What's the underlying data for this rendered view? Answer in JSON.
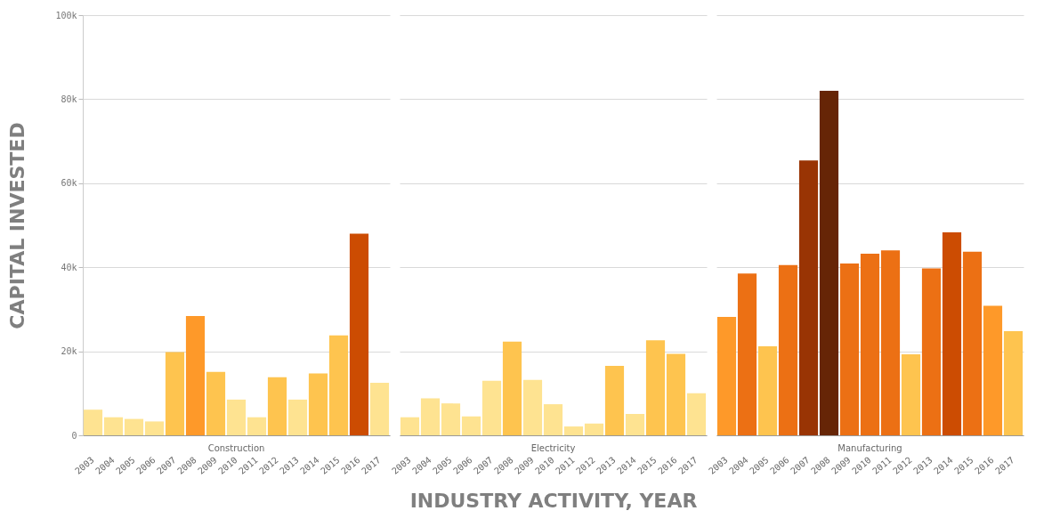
{
  "chart_data": [
    {
      "type": "bar",
      "ylabel": "CAPITAL INVESTED",
      "annotations": [
        "Construction"
      ],
      "categories": [
        "2003",
        "2004",
        "2005",
        "2006",
        "2007",
        "2008",
        "2009",
        "2010",
        "2011",
        "2012",
        "2013",
        "2014",
        "2015",
        "2016",
        "2017"
      ],
      "values": [
        6100,
        4300,
        3900,
        3300,
        19800,
        28400,
        15100,
        8500,
        4300,
        13800,
        8500,
        14700,
        23800,
        48000,
        12500
      ],
      "colors": [
        "#fee391",
        "#fee391",
        "#fee391",
        "#fee391",
        "#fec44f",
        "#fe9929",
        "#fec44f",
        "#fee391",
        "#fee391",
        "#fec44f",
        "#fee391",
        "#fec44f",
        "#fec44f",
        "#cc4c02",
        "#fee391"
      ],
      "ylim": [
        0,
        100000
      ],
      "yticks": [
        {
          "value": 0,
          "label": "0"
        },
        {
          "value": 20000,
          "label": "20k"
        },
        {
          "value": 40000,
          "label": "40k"
        },
        {
          "value": 60000,
          "label": "60k"
        },
        {
          "value": 80000,
          "label": "80k"
        },
        {
          "value": 100000,
          "label": "100k"
        }
      ],
      "grid": "y"
    },
    {
      "type": "bar",
      "xlabel": "INDUSTRY ACTIVITY, YEAR",
      "annotations": [
        "Electricity"
      ],
      "categories": [
        "2003",
        "2004",
        "2005",
        "2006",
        "2007",
        "2008",
        "2009",
        "2010",
        "2011",
        "2012",
        "2013",
        "2014",
        "2015",
        "2016",
        "2017"
      ],
      "values": [
        4300,
        8800,
        7600,
        4500,
        13000,
        22300,
        13200,
        7400,
        2100,
        2800,
        16500,
        5100,
        22600,
        19400,
        10000
      ],
      "colors": [
        "#fee391",
        "#fee391",
        "#fee391",
        "#fee391",
        "#fee391",
        "#fec44f",
        "#fee391",
        "#fee391",
        "#fee391",
        "#fee391",
        "#fec44f",
        "#fee391",
        "#fec44f",
        "#fec44f",
        "#fee391"
      ],
      "ylim": [
        0,
        100000
      ],
      "yticks": [
        0,
        20000,
        40000,
        60000,
        80000,
        100000
      ],
      "grid": "y",
      "tick_labels": "x"
    },
    {
      "type": "bar",
      "annotations": [
        "Manufacturing"
      ],
      "categories": [
        "2003",
        "2004",
        "2005",
        "2006",
        "2007",
        "2008",
        "2009",
        "2010",
        "2011",
        "2012",
        "2013",
        "2014",
        "2015",
        "2016",
        "2017"
      ],
      "values": [
        28200,
        38500,
        21200,
        40500,
        65400,
        82000,
        40900,
        43200,
        44000,
        19300,
        39700,
        48300,
        43700,
        30800,
        24800
      ],
      "colors": [
        "#fe9929",
        "#ec7014",
        "#fec44f",
        "#ec7014",
        "#993404",
        "#662506",
        "#ec7014",
        "#ec7014",
        "#ec7014",
        "#fec44f",
        "#ec7014",
        "#cc4c02",
        "#ec7014",
        "#fe9929",
        "#fec44f"
      ],
      "ylim": [
        0,
        100000
      ],
      "yticks": [
        0,
        20000,
        40000,
        60000,
        80000,
        100000
      ],
      "grid": "y",
      "tick_labels": "x"
    }
  ]
}
